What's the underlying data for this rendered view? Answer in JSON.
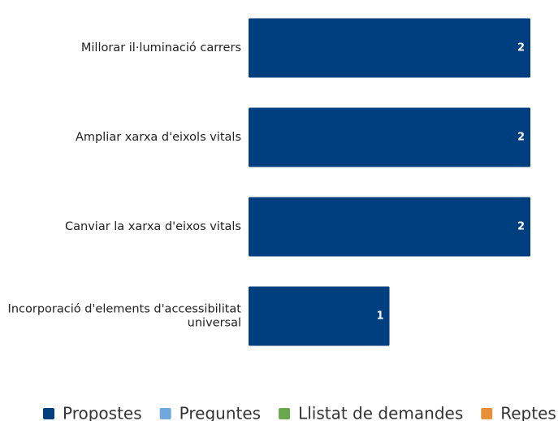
{
  "chart_data": {
    "type": "bar",
    "orientation": "horizontal",
    "categories": [
      "Millorar il·luminació carrers",
      "Ampliar xarxa d'eixols vitals",
      "Canviar la xarxa d'eixos vitals",
      "Incorporació d'elements d'accessibilitat universal"
    ],
    "series": [
      {
        "name": "Propostes",
        "color": "#003f7f",
        "values": [
          2,
          2,
          2,
          1
        ]
      },
      {
        "name": "Preguntes",
        "color": "#6fa8dc",
        "values": [
          null,
          null,
          null,
          null
        ]
      },
      {
        "name": "Llistat de demandes",
        "color": "#6aa84f",
        "values": [
          null,
          null,
          null,
          null
        ]
      },
      {
        "name": "Reptes",
        "color": "#e69138",
        "values": [
          null,
          null,
          null,
          null
        ]
      }
    ],
    "xlim": [
      0,
      2
    ],
    "legend": "bottom"
  }
}
